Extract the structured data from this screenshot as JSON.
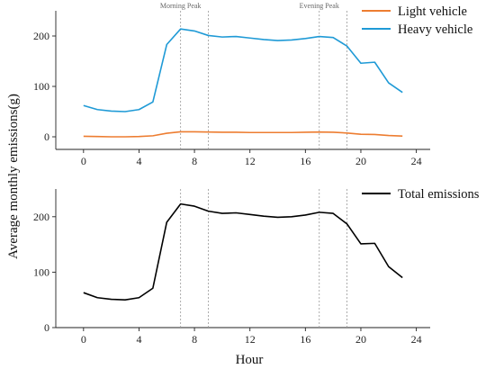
{
  "chart_data": {
    "type": "line",
    "ylabel": "Average monthly emissions(g)",
    "xlabel": "Hour",
    "annotations": {
      "morning": {
        "label": "Morning Peak",
        "lines_at": [
          7,
          9
        ]
      },
      "evening": {
        "label": "Evening Peak",
        "lines_at": [
          17,
          19
        ]
      }
    },
    "panels": [
      {
        "xlim": [
          -2,
          25
        ],
        "ylim": [
          -25,
          250
        ],
        "xticks": [
          0,
          4,
          8,
          12,
          16,
          20,
          24
        ],
        "yticks": [
          0,
          100,
          200
        ],
        "legend_position": "top-right",
        "x": [
          0,
          1,
          2,
          3,
          4,
          5,
          6,
          7,
          8,
          9,
          10,
          11,
          12,
          13,
          14,
          15,
          16,
          17,
          18,
          19,
          20,
          21,
          22,
          23
        ],
        "series": [
          {
            "name": "Light vehicle",
            "color": "#ED7D31",
            "values": [
              1,
              0.5,
              0,
              0,
              0.5,
              2,
              7,
              10,
              10,
              9.5,
              9,
              9,
              8.5,
              8.5,
              8.5,
              8.5,
              9,
              9.5,
              9,
              7.5,
              5,
              4.5,
              2.5,
              1.5
            ]
          },
          {
            "name": "Heavy vehicle",
            "color": "#1F9AD6",
            "values": [
              62,
              54,
              51,
              50,
              54,
              69,
              183,
              214,
              210,
              201,
              198,
              199,
              196,
              193,
              191,
              192,
              195,
              199,
              197,
              180,
              146,
              148,
              107,
              88
            ]
          }
        ]
      },
      {
        "xlim": [
          -2,
          25
        ],
        "ylim": [
          0,
          250
        ],
        "xticks": [
          0,
          4,
          8,
          12,
          16,
          20,
          24
        ],
        "yticks": [
          0,
          100,
          200
        ],
        "legend_position": "top-right",
        "x": [
          0,
          1,
          2,
          3,
          4,
          5,
          6,
          7,
          8,
          9,
          10,
          11,
          12,
          13,
          14,
          15,
          16,
          17,
          18,
          19,
          20,
          21,
          22,
          23
        ],
        "series": [
          {
            "name": "Total emissions",
            "color": "#000000",
            "values": [
              63,
              54,
              51,
              50,
              54,
              71,
              190,
              223,
              219,
              210,
              206,
              207,
              204,
              201,
              199,
              200,
              203,
              208,
              206,
              187,
              151,
              152,
              110,
              90
            ]
          }
        ]
      }
    ]
  }
}
